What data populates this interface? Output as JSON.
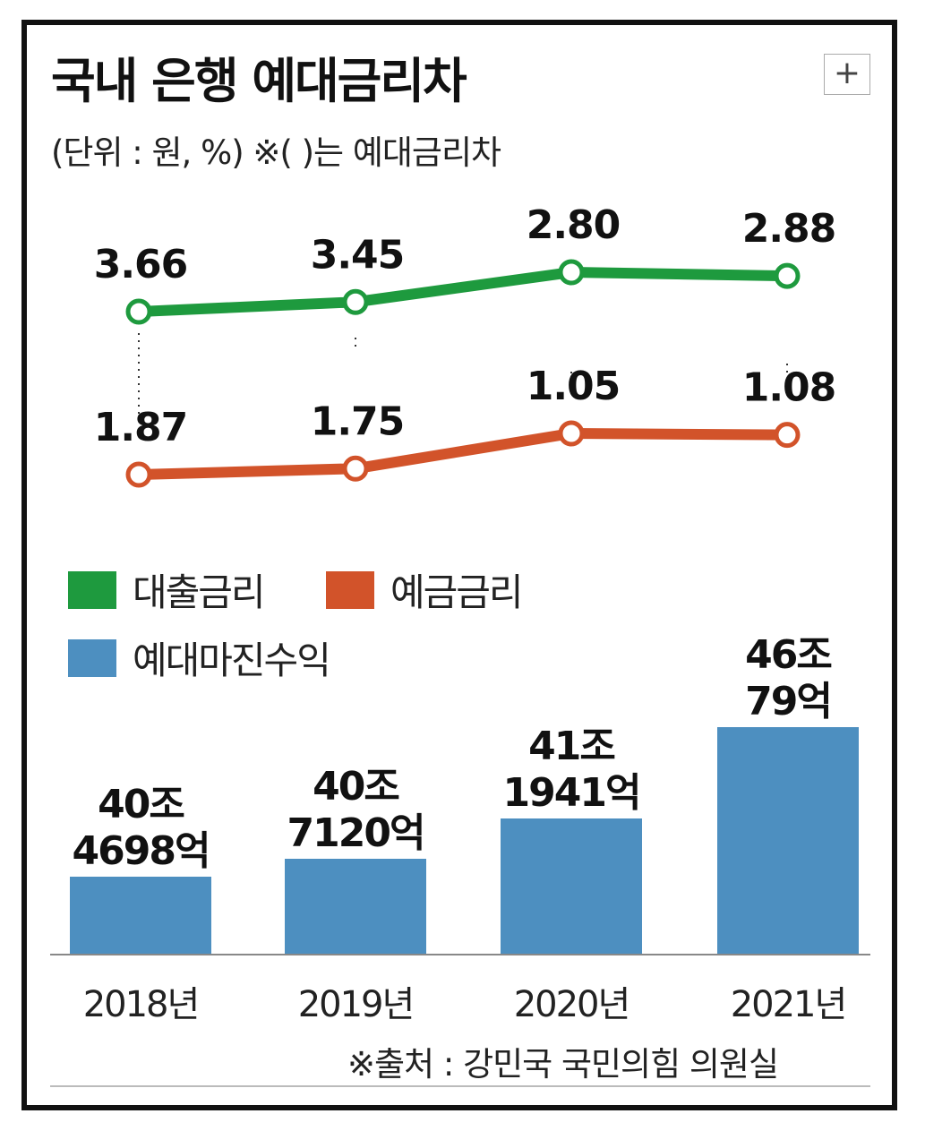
{
  "header": {
    "title": "국내 은행 예대금리차",
    "subtitle": "(단위 : 원, %)  ※(  )는 예대금리차",
    "expand_symbol": "+"
  },
  "source": "※출처 : 강민국 국민의힘 의원실",
  "chart_data": {
    "type": "bar+line",
    "categories": [
      "2018년",
      "2019년",
      "2020년",
      "2021년"
    ],
    "legend_position": "middle-left",
    "series": [
      {
        "name": "대출금리",
        "type": "line",
        "color": "#1e9a3e",
        "values": [
          3.66,
          3.45,
          2.8,
          2.88
        ],
        "labels": [
          "3.66",
          "3.45",
          "2.80",
          "2.88"
        ]
      },
      {
        "name": "예금금리",
        "type": "line",
        "color": "#d2532a",
        "values": [
          1.87,
          1.75,
          1.05,
          1.08
        ],
        "labels": [
          "1.87",
          "1.75",
          "1.05",
          "1.08"
        ]
      },
      {
        "name": "예대마진수익",
        "type": "bar",
        "color": "#4d8fc0",
        "values": [
          404698,
          407120,
          411941,
          460079
        ],
        "units": "억원",
        "labels": [
          [
            "40조",
            "4698억"
          ],
          [
            "40조",
            "7120억"
          ],
          [
            "41조",
            "1941억"
          ],
          [
            "46조",
            "79억"
          ]
        ]
      }
    ]
  }
}
